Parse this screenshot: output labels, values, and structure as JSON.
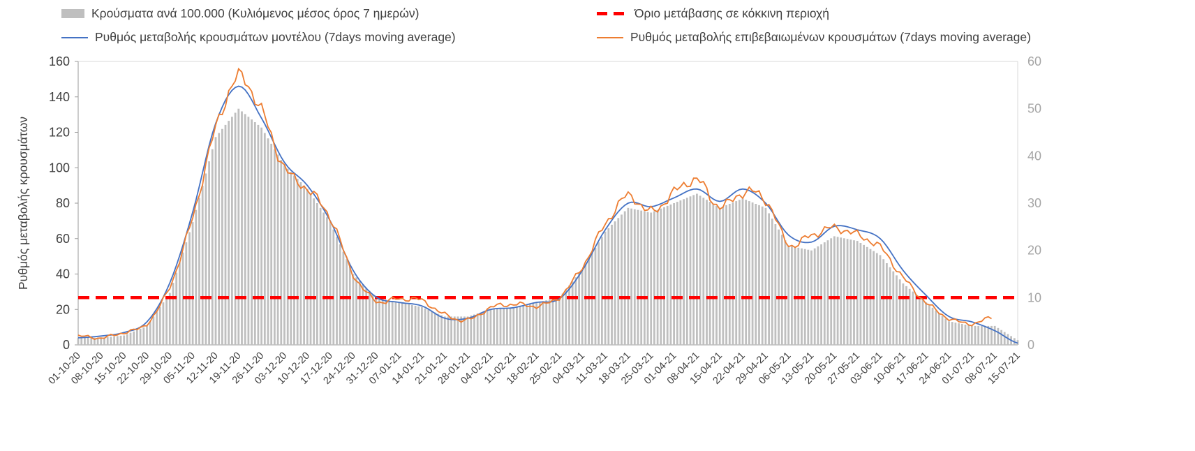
{
  "legend": {
    "bars": "Κρούσματα ανά 100.000 (Κυλιόμενος μέσος όρος 7 ημερών)",
    "threshold": "Όριο μετάβασης σε κόκκινη περιοχή",
    "model": "Ρυθμός μεταβολής κρουσμάτων μοντέλου (7days moving average)",
    "confirmed": "Ρυθμός μεταβολής επιβεβαιωμένων κρουσμάτων (7days moving average)"
  },
  "axes": {
    "left_label": "Ρυθμός μεταβολής κρουσμάτων",
    "left_ticks": [
      0,
      20,
      40,
      60,
      80,
      100,
      120,
      140,
      160
    ],
    "right_ticks": [
      0,
      10,
      20,
      30,
      40,
      50,
      60
    ]
  },
  "colors": {
    "bars": "#bfbfbf",
    "model_line": "#4472C4",
    "confirmed_line": "#ED7D31",
    "threshold_line": "#FF0000",
    "axis_text": "#404040",
    "right_axis_text": "#a6a6a6",
    "gridline": "#d9d9d9"
  },
  "chart_data": [
    {
      "type": "bar",
      "title": "Κρούσματα ανά 100.000 (Κυλιόμενος μέσος όρος 7 ημερών)",
      "axis": "right",
      "ylim": [
        0,
        60
      ],
      "note": "daily bars, values estimated at weekly x-axis tick dates",
      "categories": [
        "01-10-20",
        "08-10-20",
        "15-10-20",
        "22-10-20",
        "29-10-20",
        "05-11-20",
        "12-11-20",
        "19-11-20",
        "26-11-20",
        "03-12-20",
        "10-12-20",
        "17-12-20",
        "24-12-20",
        "31-12-20",
        "07-01-21",
        "14-01-21",
        "21-01-21",
        "28-01-21",
        "04-02-21",
        "11-02-21",
        "18-02-21",
        "25-02-21",
        "04-03-21",
        "11-03-21",
        "18-03-21",
        "25-03-21",
        "01-04-21",
        "08-04-21",
        "15-04-21",
        "22-04-21",
        "29-04-21",
        "06-05-21",
        "13-05-21",
        "20-05-21",
        "27-05-21",
        "03-06-21",
        "10-06-21",
        "17-06-21",
        "24-06-21",
        "01-07-21",
        "08-07-21",
        "15-07-21"
      ],
      "values": [
        1.5,
        1.5,
        2,
        4,
        11,
        26,
        44,
        50,
        46,
        38,
        33,
        26,
        15,
        10,
        9,
        8,
        6,
        6,
        7.5,
        8,
        9,
        10,
        16,
        24,
        29,
        28,
        30,
        32,
        29,
        31,
        29,
        21,
        20,
        23,
        22,
        19,
        13,
        9,
        5,
        4,
        4,
        1
      ]
    },
    {
      "type": "line",
      "axis": "left",
      "ylim": [
        0,
        160
      ],
      "x": [
        "01-10-20",
        "08-10-20",
        "15-10-20",
        "22-10-20",
        "29-10-20",
        "05-11-20",
        "12-11-20",
        "19-11-20",
        "26-11-20",
        "03-12-20",
        "10-12-20",
        "17-12-20",
        "24-12-20",
        "31-12-20",
        "07-01-21",
        "14-01-21",
        "21-01-21",
        "28-01-21",
        "04-02-21",
        "11-02-21",
        "18-02-21",
        "25-02-21",
        "04-03-21",
        "11-03-21",
        "18-03-21",
        "25-03-21",
        "01-04-21",
        "08-04-21",
        "15-04-21",
        "22-04-21",
        "29-04-21",
        "06-05-21",
        "13-05-21",
        "20-05-21",
        "27-05-21",
        "03-06-21",
        "10-06-21",
        "17-06-21",
        "24-06-21",
        "01-07-21",
        "08-07-21",
        "15-07-21"
      ],
      "series": [
        {
          "name": "Ρυθμός μεταβολής κρουσμάτων μοντέλου (7days moving average)",
          "color": "#4472C4",
          "values": [
            4,
            5,
            7,
            13,
            35,
            75,
            125,
            146,
            128,
            103,
            90,
            70,
            42,
            27,
            24,
            22,
            15,
            15,
            20,
            21,
            24,
            26,
            42,
            65,
            80,
            78,
            83,
            88,
            81,
            88,
            80,
            62,
            58,
            67,
            65,
            60,
            42,
            28,
            16,
            13,
            8,
            1
          ]
        },
        {
          "name": "Ρυθμός μεταβολής επιβεβαιωμένων κρουσμάτων (7days moving average)",
          "color": "#ED7D31",
          "values": [
            5,
            4,
            7,
            12,
            33,
            72,
            122,
            151,
            132,
            100,
            88,
            72,
            40,
            25,
            26,
            25,
            17,
            14,
            21,
            23,
            22,
            27,
            44,
            68,
            84,
            75,
            86,
            93,
            78,
            86,
            82,
            57,
            62,
            66,
            62,
            55,
            38,
            24,
            15,
            12,
            16,
            null
          ]
        }
      ],
      "threshold": {
        "name": "Όριο μετάβασης σε κόκκινη περιοχή",
        "axis": "right",
        "value": 10,
        "color": "#FF0000",
        "style": "dashed"
      },
      "legend_position": "top",
      "grid": "off"
    }
  ]
}
